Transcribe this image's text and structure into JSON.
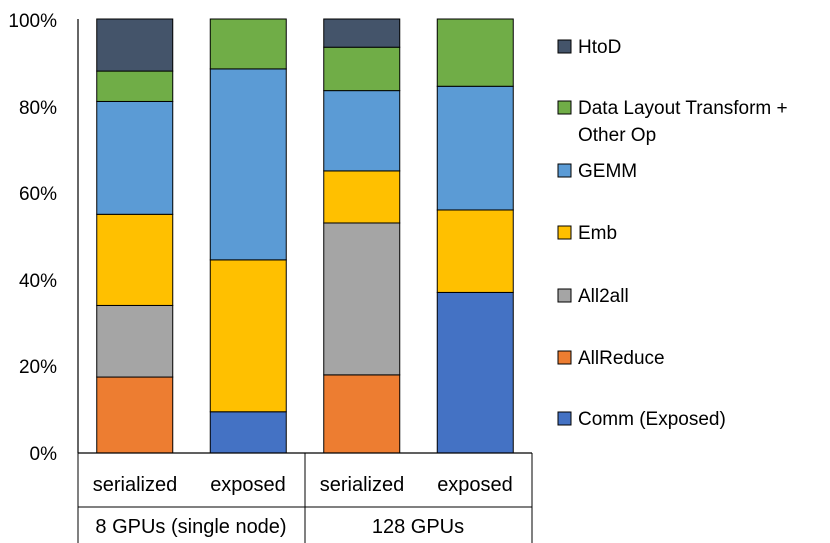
{
  "chart_data": {
    "type": "bar",
    "stacked": true,
    "percent": true,
    "title": "",
    "xlabel": "",
    "ylabel": "",
    "ylim": [
      0,
      100
    ],
    "yticks": [
      "0%",
      "20%",
      "40%",
      "60%",
      "80%",
      "100%"
    ],
    "categories": [
      "serialized",
      "exposed",
      "serialized",
      "exposed"
    ],
    "groups": [
      {
        "label": "8 GPUs (single node)",
        "categories": [
          "serialized",
          "exposed"
        ]
      },
      {
        "label": "128 GPUs",
        "categories": [
          "serialized",
          "exposed"
        ]
      }
    ],
    "legend_position": "right",
    "series": [
      {
        "name": "Comm (Exposed)",
        "color": "#4472C4",
        "values": [
          0,
          9.5,
          0,
          37
        ]
      },
      {
        "name": "AllReduce",
        "color": "#ED7D31",
        "values": [
          17.5,
          0,
          18,
          0
        ]
      },
      {
        "name": "All2all",
        "color": "#A5A5A5",
        "values": [
          16.5,
          0,
          35,
          0
        ]
      },
      {
        "name": "Emb",
        "color": "#FFC000",
        "values": [
          21,
          35,
          12,
          19
        ]
      },
      {
        "name": "GEMM",
        "color": "#5B9BD5",
        "values": [
          26,
          44,
          18.5,
          28.5
        ]
      },
      {
        "name": "Data Layout Transform + Other Op",
        "color": "#70AD47",
        "values": [
          7,
          11.5,
          10,
          15.5
        ]
      },
      {
        "name": "HtoD",
        "color": "#44546A",
        "values": [
          12,
          0,
          6.5,
          0
        ]
      }
    ]
  }
}
